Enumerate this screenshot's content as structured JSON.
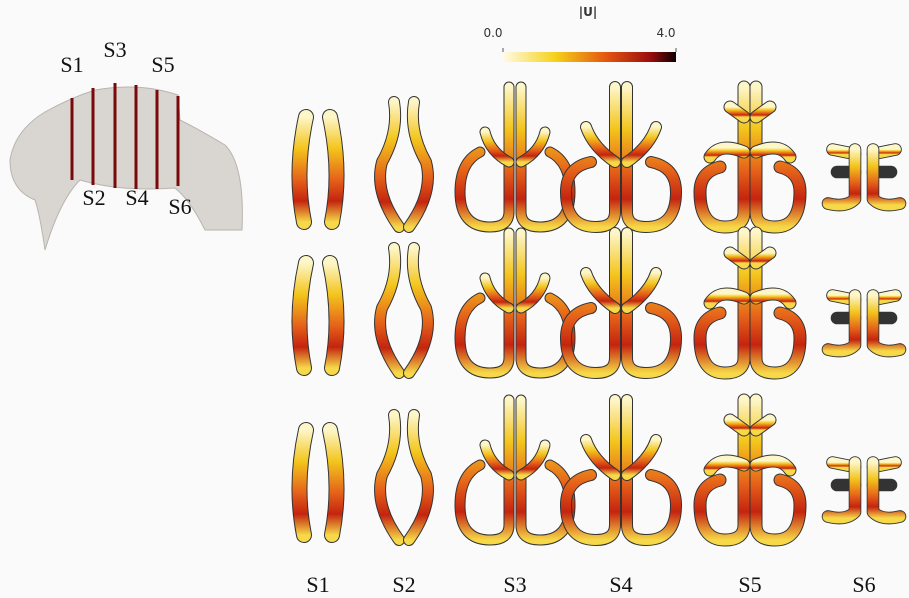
{
  "colorbar": {
    "title": "|U|",
    "lim": [
      0,
      4
    ],
    "ticks": [
      {
        "value": 0,
        "label": "0.0"
      },
      {
        "value": 4,
        "label": "4.0"
      }
    ]
  },
  "model": {
    "labels": [
      "S1",
      "S2",
      "S3",
      "S4",
      "S5",
      "S6"
    ]
  },
  "columns": [
    "S1",
    "S2",
    "S3",
    "S4",
    "S5",
    "S6"
  ]
}
